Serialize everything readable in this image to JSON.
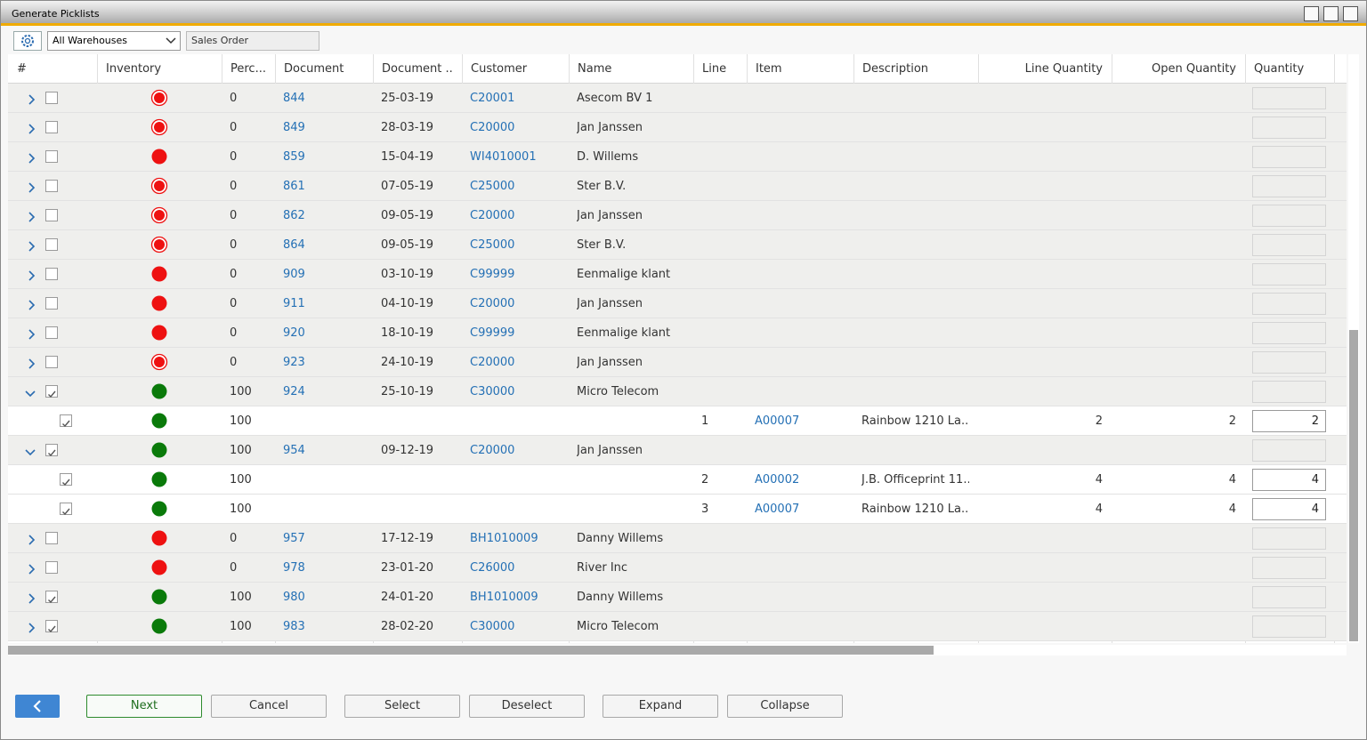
{
  "window": {
    "title": "Generate Picklists"
  },
  "toolbar": {
    "warehouse": "All Warehouses",
    "document_type": "Sales Order"
  },
  "table": {
    "columns": [
      "#",
      "Inventory",
      "Perc...",
      "Document",
      "Document ...",
      "Customer",
      "Name",
      "Line",
      "Item",
      "Description",
      "Line Quantity",
      "Open Quantity",
      "Quantity"
    ],
    "rows": [
      {
        "level": "order",
        "expanded": false,
        "checked": false,
        "status": "partial",
        "cells": [
          "0",
          "844",
          "25-03-19",
          "C20001",
          "Asecom BV 1",
          null,
          null,
          null,
          null,
          null,
          null
        ]
      },
      {
        "level": "order",
        "expanded": false,
        "checked": false,
        "status": "partial",
        "cells": [
          "0",
          "849",
          "28-03-19",
          "C20000",
          "Jan Janssen",
          null,
          null,
          null,
          null,
          null,
          null
        ]
      },
      {
        "level": "order",
        "expanded": false,
        "checked": false,
        "status": "none",
        "cells": [
          "0",
          "859",
          "15-04-19",
          "WI4010001",
          "D. Willems",
          null,
          null,
          null,
          null,
          null,
          null
        ]
      },
      {
        "level": "order",
        "expanded": false,
        "checked": false,
        "status": "partial",
        "cells": [
          "0",
          "861",
          "07-05-19",
          "C25000",
          "Ster B.V.",
          null,
          null,
          null,
          null,
          null,
          null
        ]
      },
      {
        "level": "order",
        "expanded": false,
        "checked": false,
        "status": "partial",
        "cells": [
          "0",
          "862",
          "09-05-19",
          "C20000",
          "Jan Janssen",
          null,
          null,
          null,
          null,
          null,
          null
        ]
      },
      {
        "level": "order",
        "expanded": false,
        "checked": false,
        "status": "partial",
        "cells": [
          "0",
          "864",
          "09-05-19",
          "C25000",
          "Ster B.V.",
          null,
          null,
          null,
          null,
          null,
          null
        ]
      },
      {
        "level": "order",
        "expanded": false,
        "checked": false,
        "status": "none",
        "cells": [
          "0",
          "909",
          "03-10-19",
          "C99999",
          "Eenmalige klant",
          null,
          null,
          null,
          null,
          null,
          null
        ]
      },
      {
        "level": "order",
        "expanded": false,
        "checked": false,
        "status": "none",
        "cells": [
          "0",
          "911",
          "04-10-19",
          "C20000",
          "Jan Janssen",
          null,
          null,
          null,
          null,
          null,
          null
        ]
      },
      {
        "level": "order",
        "expanded": false,
        "checked": false,
        "status": "none",
        "cells": [
          "0",
          "920",
          "18-10-19",
          "C99999",
          "Eenmalige klant",
          null,
          null,
          null,
          null,
          null,
          null
        ]
      },
      {
        "level": "order",
        "expanded": false,
        "checked": false,
        "status": "partial",
        "cells": [
          "0",
          "923",
          "24-10-19",
          "C20000",
          "Jan Janssen",
          null,
          null,
          null,
          null,
          null,
          null
        ]
      },
      {
        "level": "order",
        "expanded": true,
        "checked": true,
        "status": "full",
        "cells": [
          "100",
          "924",
          "25-10-19",
          "C30000",
          "Micro Telecom",
          null,
          null,
          null,
          null,
          null,
          null
        ]
      },
      {
        "level": "line",
        "checked": true,
        "status": "full",
        "cells": [
          "100",
          null,
          null,
          null,
          null,
          "1",
          "A00007",
          "Rainbow 1210 La...",
          "2",
          "2",
          "2"
        ]
      },
      {
        "level": "order",
        "expanded": true,
        "checked": true,
        "status": "full",
        "cells": [
          "100",
          "954",
          "09-12-19",
          "C20000",
          "Jan Janssen",
          null,
          null,
          null,
          null,
          null,
          null
        ]
      },
      {
        "level": "line",
        "checked": true,
        "status": "full",
        "cells": [
          "100",
          null,
          null,
          null,
          null,
          "2",
          "A00002",
          "J.B. Officeprint 11...",
          "4",
          "4",
          "4"
        ]
      },
      {
        "level": "line",
        "checked": true,
        "status": "full",
        "cells": [
          "100",
          null,
          null,
          null,
          null,
          "3",
          "A00007",
          "Rainbow 1210 La...",
          "4",
          "4",
          "4"
        ]
      },
      {
        "level": "order",
        "expanded": false,
        "checked": false,
        "status": "none",
        "cells": [
          "0",
          "957",
          "17-12-19",
          "BH1010009",
          "Danny Willems",
          null,
          null,
          null,
          null,
          null,
          null
        ]
      },
      {
        "level": "order",
        "expanded": false,
        "checked": false,
        "status": "none",
        "cells": [
          "0",
          "978",
          "23-01-20",
          "C26000",
          "River Inc",
          null,
          null,
          null,
          null,
          null,
          null
        ]
      },
      {
        "level": "order",
        "expanded": false,
        "checked": true,
        "status": "full",
        "cells": [
          "100",
          "980",
          "24-01-20",
          "BH1010009",
          "Danny Willems",
          null,
          null,
          null,
          null,
          null,
          null
        ]
      },
      {
        "level": "order",
        "expanded": false,
        "checked": true,
        "status": "full",
        "cells": [
          "100",
          "983",
          "28-02-20",
          "C30000",
          "Micro Telecom",
          null,
          null,
          null,
          null,
          null,
          null
        ]
      }
    ]
  },
  "buttons": [
    "Next",
    "Cancel",
    "Select",
    "Deselect",
    "Expand",
    "Collapse"
  ]
}
